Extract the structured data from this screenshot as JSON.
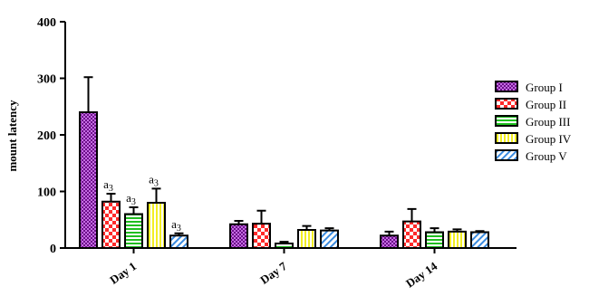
{
  "chart_data": {
    "type": "bar",
    "title": "",
    "xlabel": "",
    "ylabel": "mount latency",
    "ylim": [
      0,
      400
    ],
    "yticks": [
      0,
      100,
      200,
      300,
      400
    ],
    "categories": [
      "Day 1",
      "Day 7",
      "Day 14"
    ],
    "legend_position": "right",
    "series": [
      {
        "name": "Group I",
        "pattern": "dots",
        "color": "#b01ecf",
        "values": [
          240,
          42,
          22
        ],
        "errors": [
          62,
          6,
          7
        ]
      },
      {
        "name": "Group II",
        "pattern": "checker",
        "color": "#ff2a2a",
        "values": [
          82,
          43,
          47
        ],
        "errors": [
          14,
          23,
          22
        ]
      },
      {
        "name": "Group III",
        "pattern": "hstripe",
        "color": "#1fbf1f",
        "values": [
          60,
          8,
          28
        ],
        "errors": [
          12,
          3,
          7
        ]
      },
      {
        "name": "Group IV",
        "pattern": "vstripe",
        "color": "#f2ee22",
        "values": [
          80,
          32,
          29
        ],
        "errors": [
          25,
          7,
          4
        ]
      },
      {
        "name": "Group V",
        "pattern": "diag",
        "color": "#3a8be0",
        "values": [
          22,
          31,
          28
        ],
        "errors": [
          4,
          4,
          2
        ]
      }
    ],
    "annotations": [
      {
        "category": "Day 1",
        "series": "Group II",
        "text": "a",
        "sub": "3"
      },
      {
        "category": "Day 1",
        "series": "Group III",
        "text": "a",
        "sub": "3"
      },
      {
        "category": "Day 1",
        "series": "Group IV",
        "text": "a",
        "sub": "3"
      },
      {
        "category": "Day 1",
        "series": "Group V",
        "text": "a",
        "sub": "3"
      }
    ]
  }
}
